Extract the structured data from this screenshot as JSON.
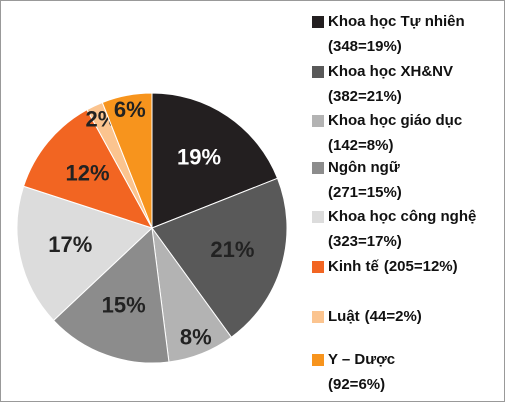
{
  "chart_data": {
    "type": "pie",
    "categories": [
      "Khoa học Tự nhiên",
      "Khoa học XH&NV",
      "Khoa học giáo dục",
      "Ngôn ngữ",
      "Khoa học công nghệ",
      "Kinh tế",
      "Luật",
      "Y – Dược"
    ],
    "legend_details": [
      "(348=19%)",
      "(382=21%)",
      "(142=8%)",
      "(271=15%)",
      "(323=17%)",
      "(205=12%)",
      "(44=2%)",
      "(92=6%)"
    ],
    "values": [
      19,
      21,
      8,
      15,
      17,
      12,
      2,
      6
    ],
    "value_labels": [
      "19%",
      "21%",
      "8%",
      "15%",
      "17%",
      "12%",
      "2%",
      "6%"
    ],
    "colors": [
      "#231f20",
      "#595959",
      "#b3b3b3",
      "#8c8c8c",
      "#dcdcdc",
      "#f26522",
      "#fbc48f",
      "#f7941d"
    ],
    "legend": "right"
  }
}
